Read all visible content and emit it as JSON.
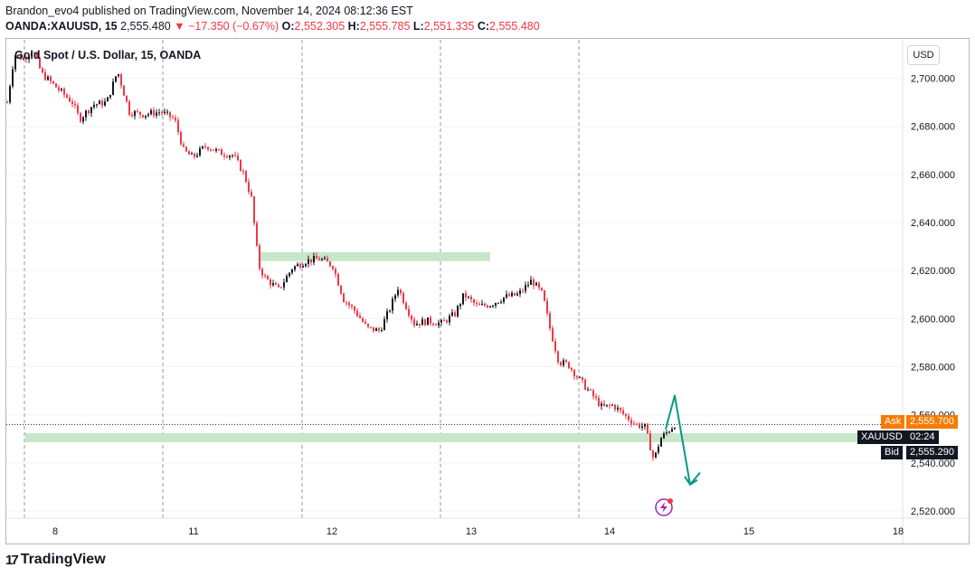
{
  "header": {
    "publisher_line": "Brandon_evo4 published on TradingView.com, November 14, 2024 08:12:36 EST",
    "symbol": "OANDA:XAUUSD, 15",
    "last": "2,555.480",
    "change_arrow": "▼",
    "change": "−17.350 (−0.67%)",
    "open_label": "O:",
    "open": "2,552.305",
    "high_label": "H:",
    "high": "2,555.785",
    "low_label": "L:",
    "low": "2,551.335",
    "close_label": "C:",
    "close": "2,555.480"
  },
  "chart": {
    "title": "Gold Spot / U.S. Dollar, 15, OANDA",
    "currency_button": "USD",
    "price_ticks": [
      "2,700.000",
      "2,680.000",
      "2,660.000",
      "2,640.000",
      "2,620.000",
      "2,600.000",
      "2,580.000",
      "2,560.000",
      "2,540.000",
      "2,520.000"
    ],
    "time_ticks": [
      "8",
      "11",
      "12",
      "13",
      "14",
      "15",
      "18"
    ],
    "ask_label": "Ask",
    "ask_price": "2,555.700",
    "symbol_tag": "XAUUSD",
    "countdown": "02:24",
    "bid_label": "Bid",
    "bid_price": "2,555.290",
    "colors": {
      "up": "#131722",
      "down": "#f23645",
      "zone": "#c8e6c9",
      "arrow": "#089981",
      "ask_bg": "#f57c00",
      "bid_bg": "#131722"
    }
  },
  "chart_data": {
    "type": "candlestick",
    "ylim": [
      2517,
      2716
    ],
    "price_path": [
      [
        0,
        2690
      ],
      [
        8,
        2710
      ],
      [
        18,
        2708
      ],
      [
        28,
        2712
      ],
      [
        38,
        2702
      ],
      [
        55,
        2696
      ],
      [
        72,
        2690
      ],
      [
        80,
        2683
      ],
      [
        95,
        2689
      ],
      [
        110,
        2690
      ],
      [
        122,
        2703
      ],
      [
        135,
        2686
      ],
      [
        150,
        2685
      ],
      [
        170,
        2686
      ],
      [
        185,
        2683
      ],
      [
        195,
        2670
      ],
      [
        205,
        2667
      ],
      [
        220,
        2672
      ],
      [
        235,
        2669
      ],
      [
        250,
        2668
      ],
      [
        262,
        2660
      ],
      [
        270,
        2650
      ],
      [
        278,
        2622
      ],
      [
        285,
        2617
      ],
      [
        300,
        2612
      ],
      [
        315,
        2621
      ],
      [
        330,
        2624
      ],
      [
        345,
        2625
      ],
      [
        360,
        2622
      ],
      [
        372,
        2608
      ],
      [
        385,
        2603
      ],
      [
        398,
        2596
      ],
      [
        412,
        2595
      ],
      [
        424,
        2605
      ],
      [
        432,
        2613
      ],
      [
        440,
        2606
      ],
      [
        450,
        2598
      ],
      [
        465,
        2599
      ],
      [
        480,
        2598
      ],
      [
        495,
        2602
      ],
      [
        505,
        2610
      ],
      [
        520,
        2605
      ],
      [
        535,
        2606
      ],
      [
        550,
        2609
      ],
      [
        565,
        2610
      ],
      [
        580,
        2616
      ],
      [
        592,
        2610
      ],
      [
        600,
        2596
      ],
      [
        610,
        2582
      ],
      [
        620,
        2581
      ],
      [
        632,
        2575
      ],
      [
        645,
        2569
      ],
      [
        658,
        2563
      ],
      [
        670,
        2564
      ],
      [
        682,
        2560
      ],
      [
        695,
        2556
      ],
      [
        705,
        2555
      ],
      [
        715,
        2541
      ],
      [
        722,
        2550
      ],
      [
        730,
        2553
      ],
      [
        738,
        2556
      ]
    ],
    "zones": [
      {
        "x_start": 280,
        "x_end": 534,
        "price": 2625.8
      },
      {
        "x_start": 20,
        "x_end": 1000,
        "price": 2550.5
      }
    ],
    "projection": [
      [
        728,
        2554
      ],
      [
        738,
        2568
      ],
      [
        755,
        2531
      ],
      [
        766,
        2536
      ]
    ]
  },
  "branding": {
    "logo": "17",
    "name": "TradingView"
  }
}
